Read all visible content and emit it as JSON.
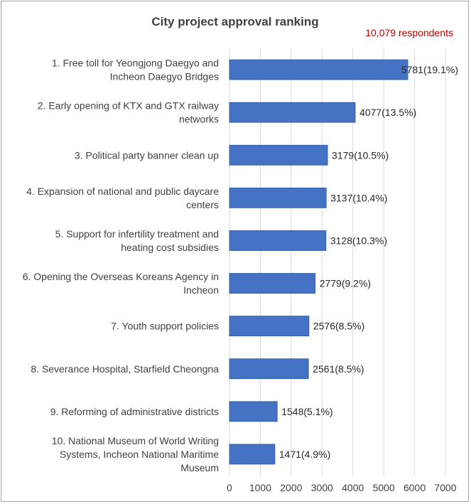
{
  "chart_data": {
    "type": "bar",
    "orientation": "horizontal",
    "title": "City project approval ranking",
    "annotation": "10,079 respondents",
    "categories": [
      [
        "1. Free toll for Yeongjong Daegyo and",
        "Incheon Daegyo Bridges"
      ],
      [
        "2. Early opening of KTX and GTX railway",
        "networks"
      ],
      [
        "3. Political party banner clean up"
      ],
      [
        "4. Expansion of national and public daycare",
        "centers"
      ],
      [
        "5. Support for infertility treatment and",
        "heating cost subsidies"
      ],
      [
        "6. Opening the Overseas Koreans Agency in",
        "Incheon"
      ],
      [
        "7. Youth support policies"
      ],
      [
        "8. Severance Hospital, Starfield Cheongna"
      ],
      [
        "9. Reforming of administrative districts"
      ],
      [
        "10. National Museum of World Writing",
        "Systems, Incheon National Maritime",
        "Museum"
      ]
    ],
    "values": [
      5781,
      4077,
      3179,
      3137,
      3128,
      2779,
      2576,
      2561,
      1548,
      1471
    ],
    "data_labels": [
      "5781(19.1%)",
      "4077(13.5%)",
      "3179(10.5%)",
      "3137(10.4%)",
      "3128(10.3%)",
      "2779(9.2%)",
      "2576(8.5%)",
      "2561(8.5%)",
      "1548(5.1%)",
      "1471(4.9%)"
    ],
    "x_ticks": [
      "0",
      "1000",
      "2000",
      "3000",
      "4000",
      "5000",
      "6000",
      "7000"
    ],
    "xlim": [
      0,
      7000
    ],
    "bar_color": "#4472c4",
    "grid": true
  }
}
